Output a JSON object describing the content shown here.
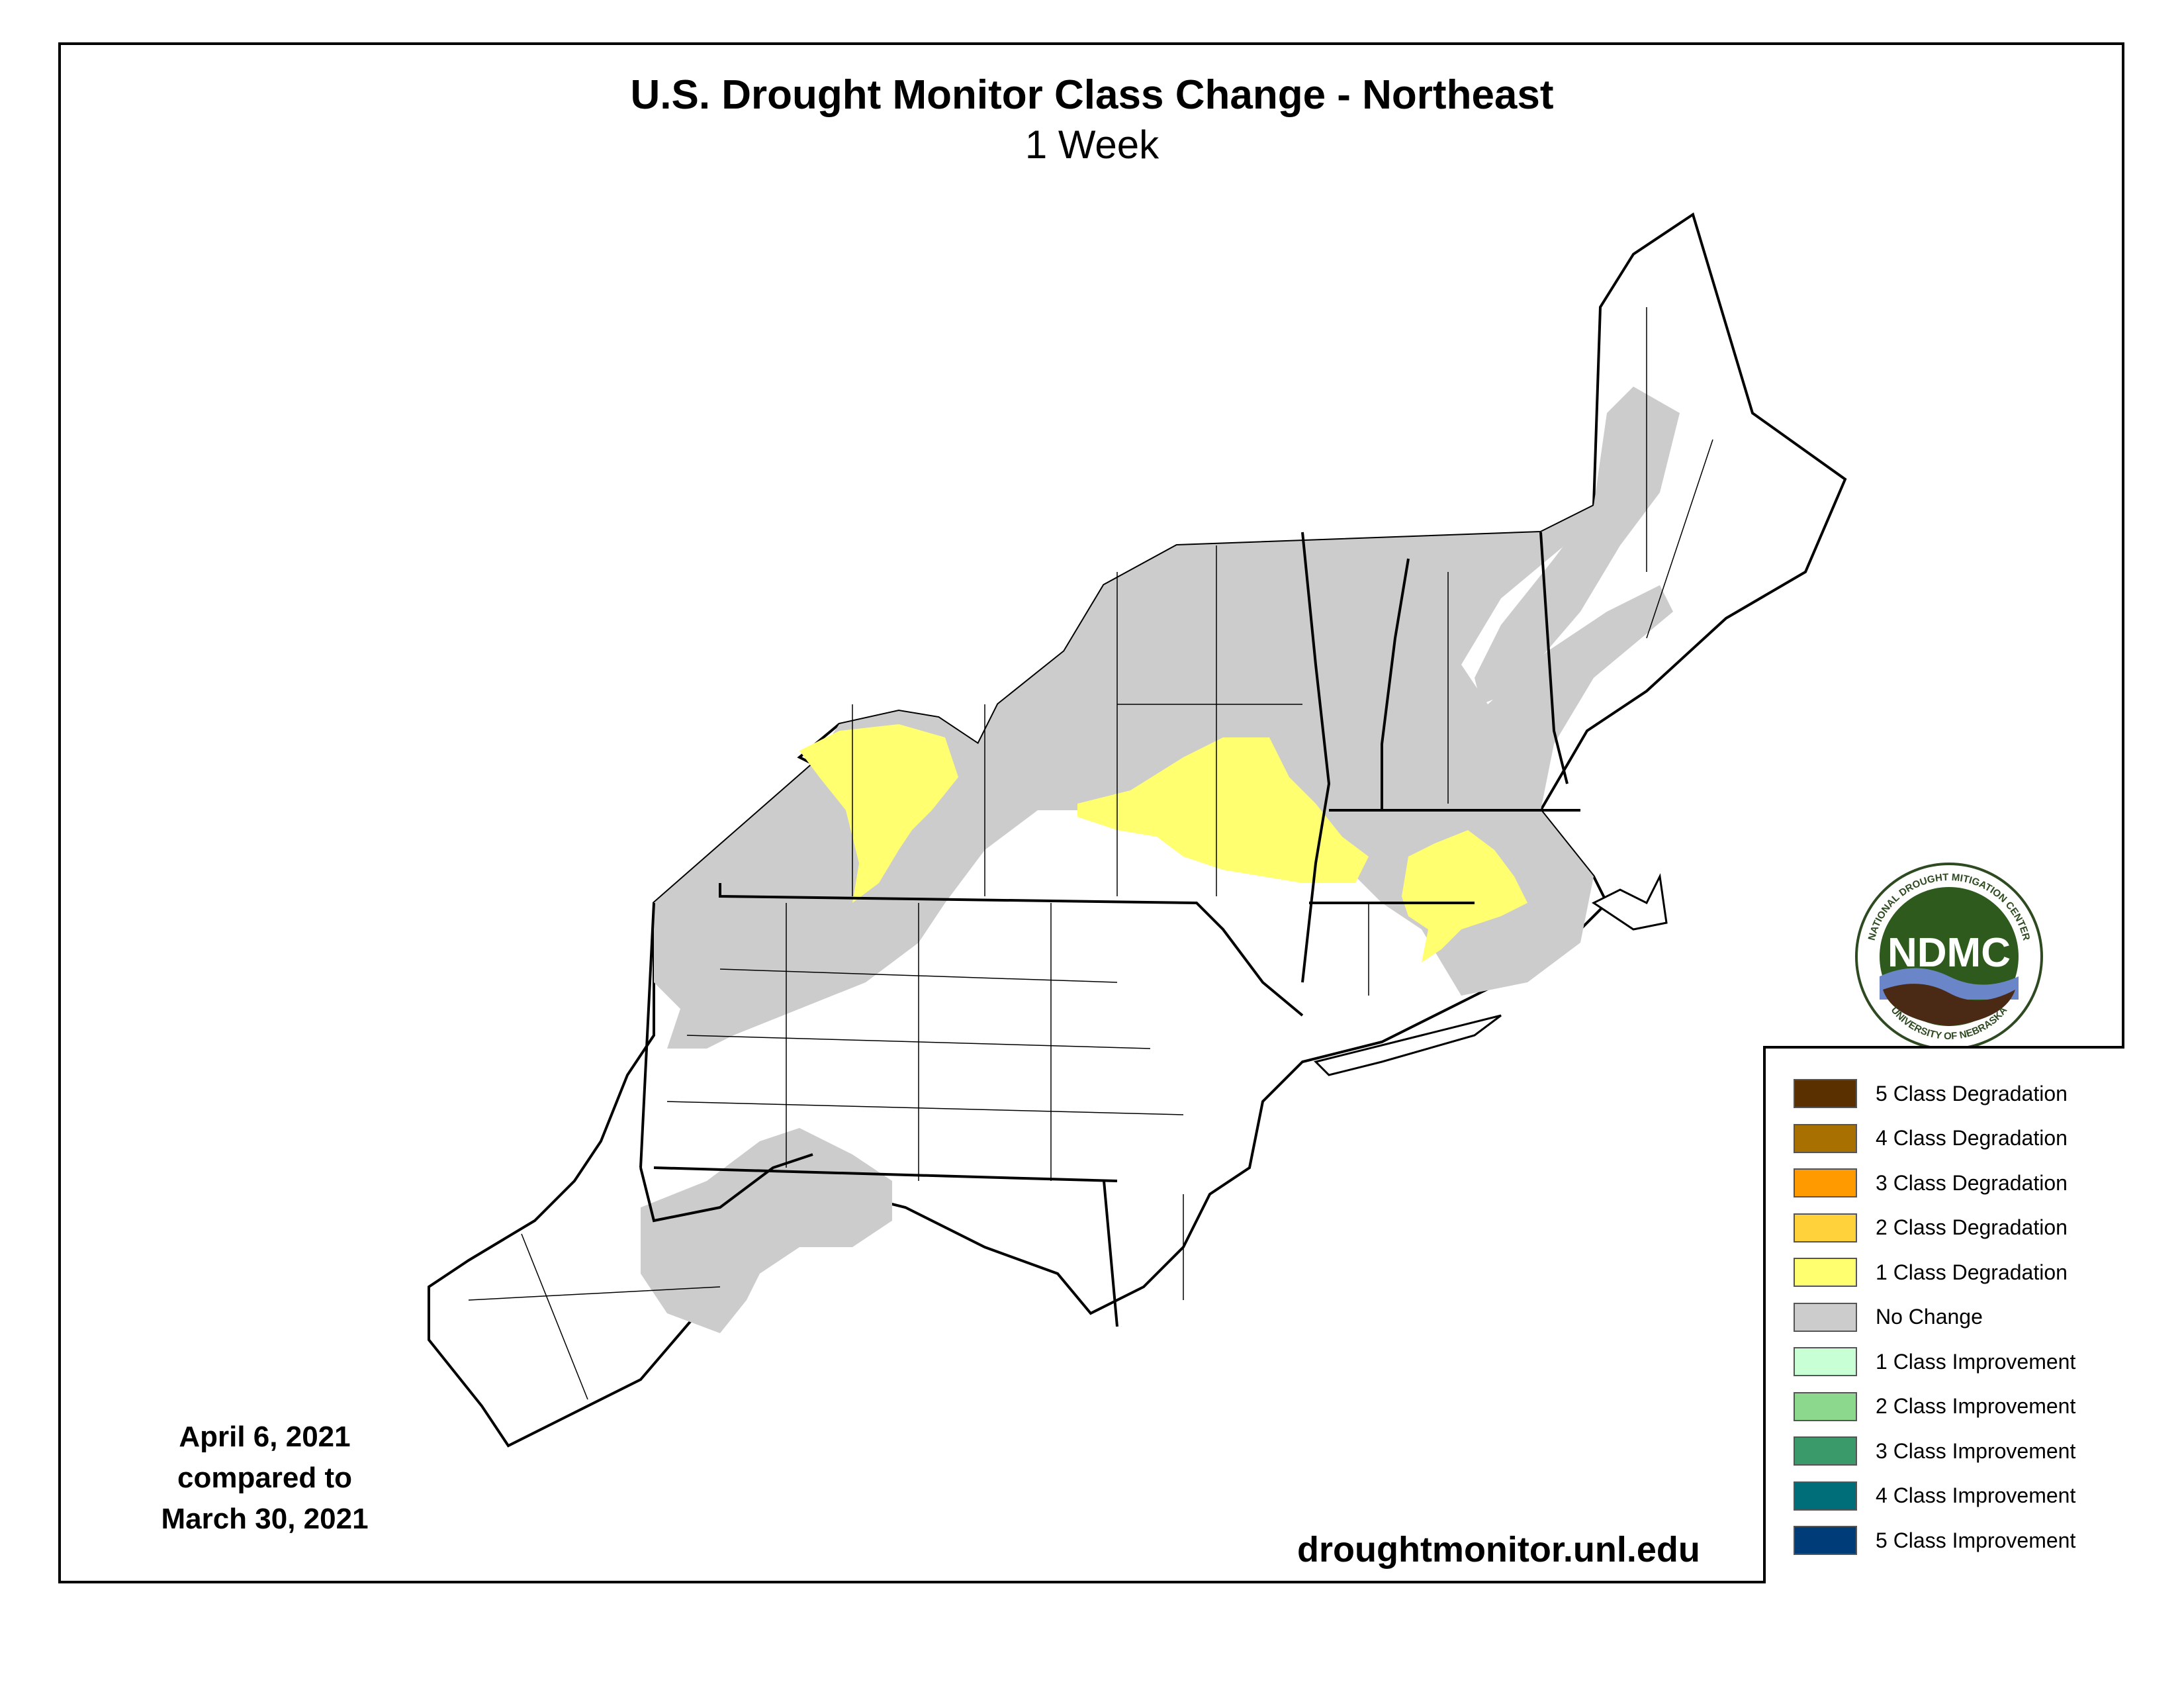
{
  "header": {
    "title": "U.S. Drought Monitor Class Change - Northeast",
    "subtitle": "1 Week"
  },
  "dates": {
    "line1": "April 6, 2021",
    "line2": "compared to",
    "line3": "March 30, 2021"
  },
  "source_url": "droughtmonitor.unl.edu",
  "logo": {
    "abbr": "NDMC",
    "ring_top": "NATIONAL DROUGHT MITIGATION CENTER",
    "ring_bottom": "UNIVERSITY OF NEBRASKA"
  },
  "legend": {
    "items": [
      {
        "label": "5 Class Degradation",
        "color": "#5a3000"
      },
      {
        "label": "4 Class Degradation",
        "color": "#a87000"
      },
      {
        "label": "3 Class Degradation",
        "color": "#ff9a00"
      },
      {
        "label": "2 Class Degradation",
        "color": "#ffd23c"
      },
      {
        "label": "1 Class Degradation",
        "color": "#ffff70"
      },
      {
        "label": "No Change",
        "color": "#cccccc"
      },
      {
        "label": "1 Class Improvement",
        "color": "#c8ffd4"
      },
      {
        "label": "2 Class Improvement",
        "color": "#8cd88c"
      },
      {
        "label": "3 Class Improvement",
        "color": "#3a9a6a"
      },
      {
        "label": "4 Class Improvement",
        "color": "#006e78"
      },
      {
        "label": "5 Class Improvement",
        "color": "#003c78"
      }
    ]
  },
  "colors": {
    "no_change": "#cccccc",
    "degradation_1": "#ffff70",
    "land": "#ffffff",
    "border": "#000000"
  }
}
